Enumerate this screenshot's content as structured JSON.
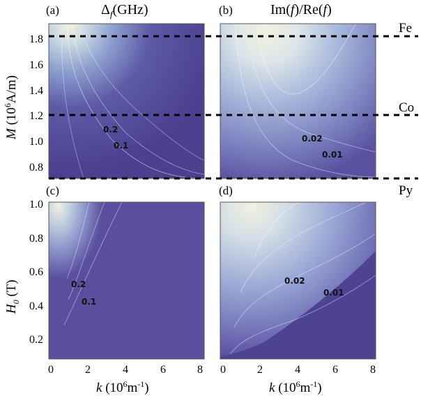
{
  "chart_data": [
    {
      "type": "heatmap",
      "panel": "(a)",
      "title": "Δ_f(GHz)",
      "xlabel": "",
      "ylabel": "M (10^6 A/m)",
      "xlim": [
        0,
        8
      ],
      "ylim": [
        0.7,
        1.9
      ],
      "yticks": [
        "0.8",
        "1.0",
        "1.2",
        "1.4",
        "1.6",
        "1.8"
      ],
      "contour_labels": [
        "0.2",
        "0.1"
      ],
      "reference_lines": [
        {
          "name": "Fe",
          "y": 1.8
        },
        {
          "name": "Co",
          "y": 1.2
        },
        {
          "name": "Py",
          "y": 0.7
        }
      ]
    },
    {
      "type": "heatmap",
      "panel": "(b)",
      "title": "Im(f)/Re(f)",
      "xlabel": "",
      "ylabel": "",
      "xlim": [
        0,
        8
      ],
      "ylim": [
        0.7,
        1.9
      ],
      "contour_labels": [
        "0.02",
        "0.01"
      ],
      "reference_lines": [
        {
          "name": "Fe",
          "y": 1.8
        },
        {
          "name": "Co",
          "y": 1.2
        },
        {
          "name": "Py",
          "y": 0.7
        }
      ]
    },
    {
      "type": "heatmap",
      "panel": "(c)",
      "title": "",
      "xlabel": "k (10^6 m^-1)",
      "ylabel": "H_0 (T)",
      "xlim": [
        0,
        8
      ],
      "ylim": [
        0.1,
        1.0
      ],
      "xticks": [
        "0",
        "2",
        "4",
        "6",
        "8"
      ],
      "yticks": [
        "0.2",
        "0.4",
        "0.6",
        "0.8",
        "1.0"
      ],
      "contour_labels": [
        "0.2",
        "0.1"
      ]
    },
    {
      "type": "heatmap",
      "panel": "(d)",
      "title": "",
      "xlabel": "k (10^6 m^-1)",
      "ylabel": "",
      "xlim": [
        0,
        8
      ],
      "ylim": [
        0.1,
        1.0
      ],
      "xticks": [
        "0",
        "2",
        "4",
        "6",
        "8"
      ],
      "contour_labels": [
        "0.02",
        "0.01"
      ]
    }
  ],
  "text": {
    "panel_a": "(a)",
    "panel_b": "(b)",
    "panel_c": "(c)",
    "panel_d": "(d)",
    "title_a": "Δ",
    "title_a_sub": "f",
    "title_a_unit": "(GHz)",
    "title_b_im": "Im(",
    "title_b_f1": "f",
    "title_b_mid": ")/Re(",
    "title_b_f2": "f",
    "title_b_close": ")",
    "material_fe": "Fe",
    "material_co": "Co",
    "material_py": "Py",
    "ylabel_top_M": "M",
    "ylabel_top_unit_open": " (10",
    "ylabel_top_exp": "6",
    "ylabel_top_unit_close": "A/m)",
    "ylabel_bottom_H": "H",
    "ylabel_bottom_sub": "0",
    "ylabel_bottom_unit": " (T)",
    "xlabel_k": "k",
    "xlabel_unit_open": " (10",
    "xlabel_exp6": "6",
    "xlabel_unit_m": "m",
    "xlabel_exp_neg": "-1",
    "xlabel_unit_close": ")"
  }
}
